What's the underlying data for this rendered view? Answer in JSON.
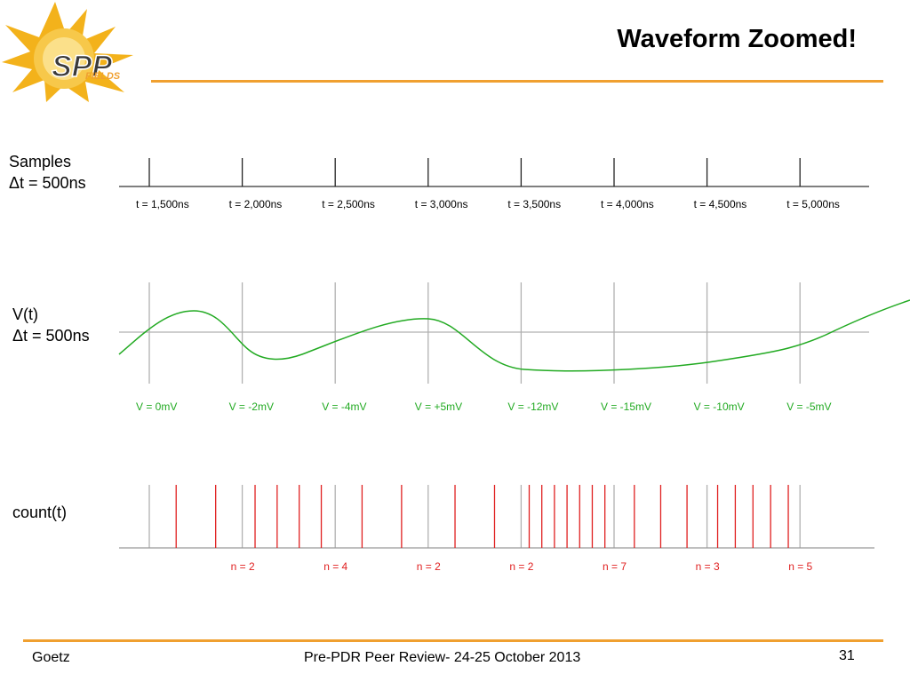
{
  "slide": {
    "title": "Waveform Zoomed!",
    "logo_text": "FIELDS",
    "logo_letters": "SPP"
  },
  "rows": {
    "samples": {
      "label": "Samples",
      "sublabel": "Δt = 500ns"
    },
    "voltage": {
      "label": "V(t)",
      "sublabel": "Δt = 500ns"
    },
    "count": {
      "label": "count(t)"
    }
  },
  "time_labels": [
    "t = 1,500ns",
    "t = 2,000ns",
    "t = 2,500ns",
    "t = 3,000ns",
    "t = 3,500ns",
    "t = 4,000ns",
    "t = 4,500ns",
    "t = 5,000ns"
  ],
  "voltage_labels": [
    "V = 0mV",
    "V = -2mV",
    "V = -4mV",
    "V = +5mV",
    "V = -12mV",
    "V = -15mV",
    "V = -10mV",
    "V = -5mV"
  ],
  "count_labels": [
    "n = 2",
    "n = 4",
    "n = 2",
    "n = 2",
    "n = 7",
    "n = 3",
    "n = 5"
  ],
  "footer": {
    "author": "Goetz",
    "event": "Pre-PDR Peer Review- 24-25 October 2013",
    "page": "31"
  },
  "colors": {
    "accent": "#f0a030",
    "voltage": "#22aa22",
    "count": "#e02020",
    "grid": "#b0b0b0"
  }
}
